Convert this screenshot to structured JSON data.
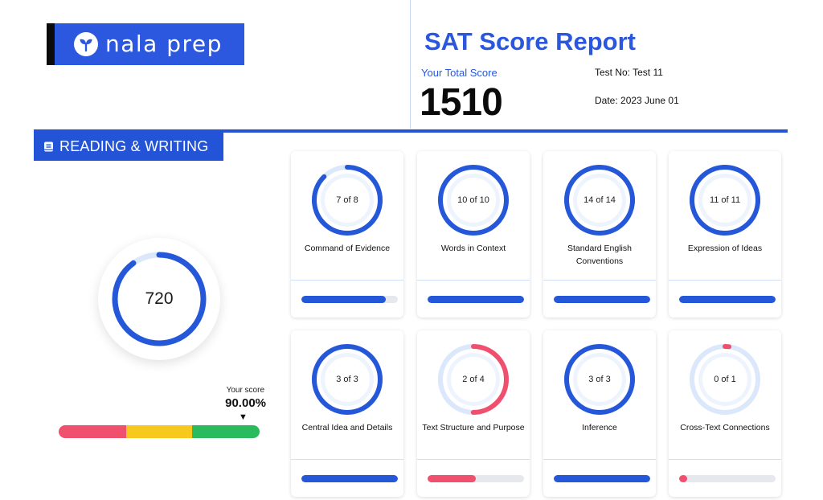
{
  "logo": {
    "text": "nala prep",
    "icon": "sprout-icon"
  },
  "header": {
    "title": "SAT Score Report",
    "total_label": "Your Total Score",
    "total_score": "1510",
    "test_no": "Test No: Test 11",
    "date": "Date: 2023 June 01"
  },
  "section": {
    "icon": "book-icon",
    "title": "READING & WRITING",
    "score": "720",
    "score_fraction": 0.9,
    "your_score_label": "Your score",
    "your_score_value": "90.00%",
    "marker": "▼",
    "scale_percent": 90
  },
  "colors": {
    "primary": "#2353d6",
    "ring_blue": "#2557d9",
    "ring_track": "#dbe7fb",
    "red": "#f0506e",
    "yellow": "#f7c91f",
    "green": "#2bbb5f"
  },
  "cards": [
    {
      "label": "Command of Evidence",
      "count": "7 of 8",
      "correct": 7,
      "total": 8,
      "status": "blue"
    },
    {
      "label": "Words in Context",
      "count": "10 of 10",
      "correct": 10,
      "total": 10,
      "status": "blue"
    },
    {
      "label": "Standard English Conventions",
      "count": "14 of 14",
      "correct": 14,
      "total": 14,
      "status": "blue"
    },
    {
      "label": "Expression of Ideas",
      "count": "11 of 11",
      "correct": 11,
      "total": 11,
      "status": "blue"
    },
    {
      "label": "Central Idea and Details",
      "count": "3 of 3",
      "correct": 3,
      "total": 3,
      "status": "blue"
    },
    {
      "label": "Text Structure and Purpose",
      "count": "2 of 4",
      "correct": 2,
      "total": 4,
      "status": "red"
    },
    {
      "label": "Inference",
      "count": "3 of 3",
      "correct": 3,
      "total": 3,
      "status": "blue"
    },
    {
      "label": "Cross-Text Connections",
      "count": "0 of 1",
      "correct": 0,
      "total": 1,
      "status": "red"
    }
  ]
}
